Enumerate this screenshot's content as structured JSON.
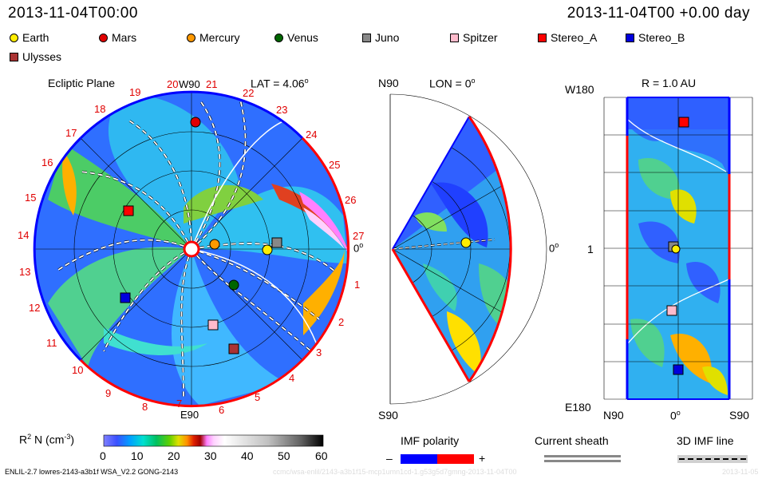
{
  "header": {
    "left_time": "2013-11-04T00:00",
    "right_time": "2013-11-04T00 +0.00 day"
  },
  "legend": [
    {
      "name": "Earth",
      "shape": "circle",
      "color": "#ffee00"
    },
    {
      "name": "Mars",
      "shape": "circle",
      "color": "#e00000"
    },
    {
      "name": "Mercury",
      "shape": "circle",
      "color": "#ff9900"
    },
    {
      "name": "Venus",
      "shape": "circle",
      "color": "#006600"
    },
    {
      "name": "Juno",
      "shape": "square",
      "color": "#888888"
    },
    {
      "name": "Spitzer",
      "shape": "square",
      "color": "#ffbbcc"
    },
    {
      "name": "Stereo_A",
      "shape": "square",
      "color": "#ff0000"
    },
    {
      "name": "Stereo_B",
      "shape": "square",
      "color": "#0000dd"
    },
    {
      "name": "Ulysses",
      "shape": "square",
      "color": "#aa3333"
    }
  ],
  "ecliptic_panel": {
    "title": "Ecliptic Plane",
    "top_label": "W90",
    "lat_label": "LAT = 4.06",
    "lat_sup": "o",
    "bottom_label": "E90",
    "right_label": "0",
    "right_sup": "o",
    "carrington_ticks": [
      "1",
      "2",
      "3",
      "4",
      "5",
      "6",
      "7",
      "8",
      "9",
      "10",
      "11",
      "12",
      "13",
      "14",
      "15",
      "16",
      "17",
      "18",
      "19",
      "20",
      "21",
      "22",
      "23",
      "24",
      "25",
      "26",
      "27"
    ]
  },
  "meridional_panel": {
    "top_left": "N90",
    "lon_label": "LON = 0",
    "lon_sup": "o",
    "bottom_left": "S90",
    "right_label": "0",
    "right_sup": "o"
  },
  "radial_panel": {
    "r_label": "R = 1.0 AU",
    "top_left": "W180",
    "mid_left": "1",
    "bottom_left": "E180",
    "bottom_n": "N90",
    "bottom_mid": "0",
    "bottom_mid_sup": "o",
    "bottom_s": "S90"
  },
  "colorbar": {
    "label": "R",
    "label_sup": "2",
    "label_rest": " N (cm",
    "label_exp": "-3",
    "label_end": ")",
    "ticks": [
      "0",
      "10",
      "20",
      "30",
      "40",
      "50",
      "60"
    ]
  },
  "imf": {
    "title": "IMF polarity",
    "minus": "–",
    "plus": "+",
    "sheath": "Current sheath",
    "line": "3D IMF line"
  },
  "footer": {
    "model": "ENLIL-2.7 lowres-2143-a3b1f WSA_V2.2 GONG-2143",
    "watermark": "ccmc/wsa-enlil/2143-a3b1f15-mcp1umn1cd-1.g53g5d7gmng-2013-11-04T00",
    "date_right": "2013-11-05"
  }
}
